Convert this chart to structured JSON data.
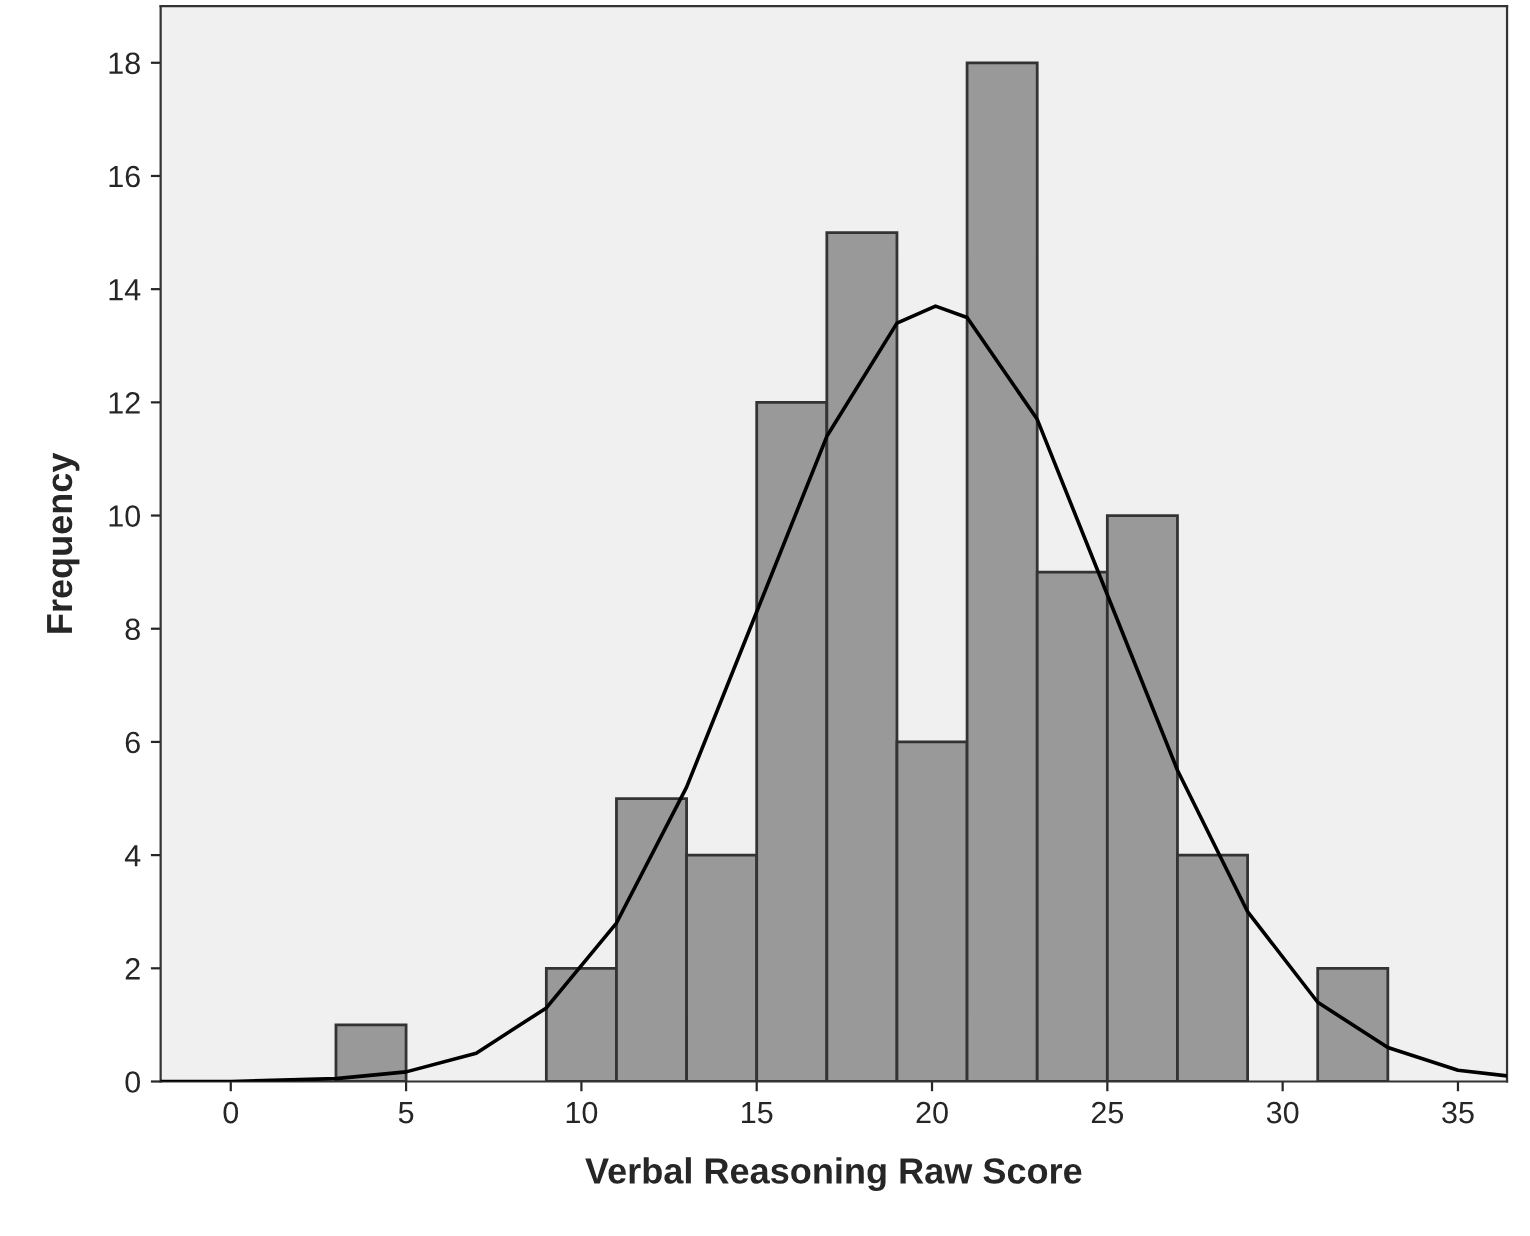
{
  "chart_data": {
    "type": "histogram",
    "xlabel": "Verbal Reasoning Raw Score",
    "ylabel": "Frequency",
    "xlim": [
      -2,
      36.4
    ],
    "ylim": [
      0,
      19
    ],
    "xticks": [
      0,
      5,
      10,
      15,
      20,
      25,
      30,
      35
    ],
    "yticks": [
      0,
      2,
      4,
      6,
      8,
      10,
      12,
      14,
      16,
      18
    ],
    "grid": false,
    "legend": false,
    "series": [
      {
        "color": "#999999",
        "bins": [
          3,
          5,
          7,
          9,
          11,
          13,
          15,
          17,
          19,
          21,
          23,
          25,
          27,
          29,
          31,
          33
        ],
        "values": [
          1,
          0,
          0,
          2,
          5,
          4,
          12,
          15,
          6,
          18,
          9,
          10,
          4,
          0,
          2
        ]
      },
      {
        "type": "line",
        "color": "#000000",
        "x": [
          -2,
          0,
          3,
          5,
          7,
          9,
          11,
          13,
          15,
          17,
          19,
          20.1,
          21,
          23,
          25,
          27,
          29,
          31,
          33,
          35,
          36.4
        ],
        "values": [
          0.0,
          0.0,
          0.05,
          0.17,
          0.5,
          1.3,
          2.8,
          5.2,
          8.3,
          11.4,
          13.4,
          13.7,
          13.5,
          11.7,
          8.6,
          5.5,
          3.0,
          1.4,
          0.6,
          0.2,
          0.1
        ]
      }
    ]
  }
}
